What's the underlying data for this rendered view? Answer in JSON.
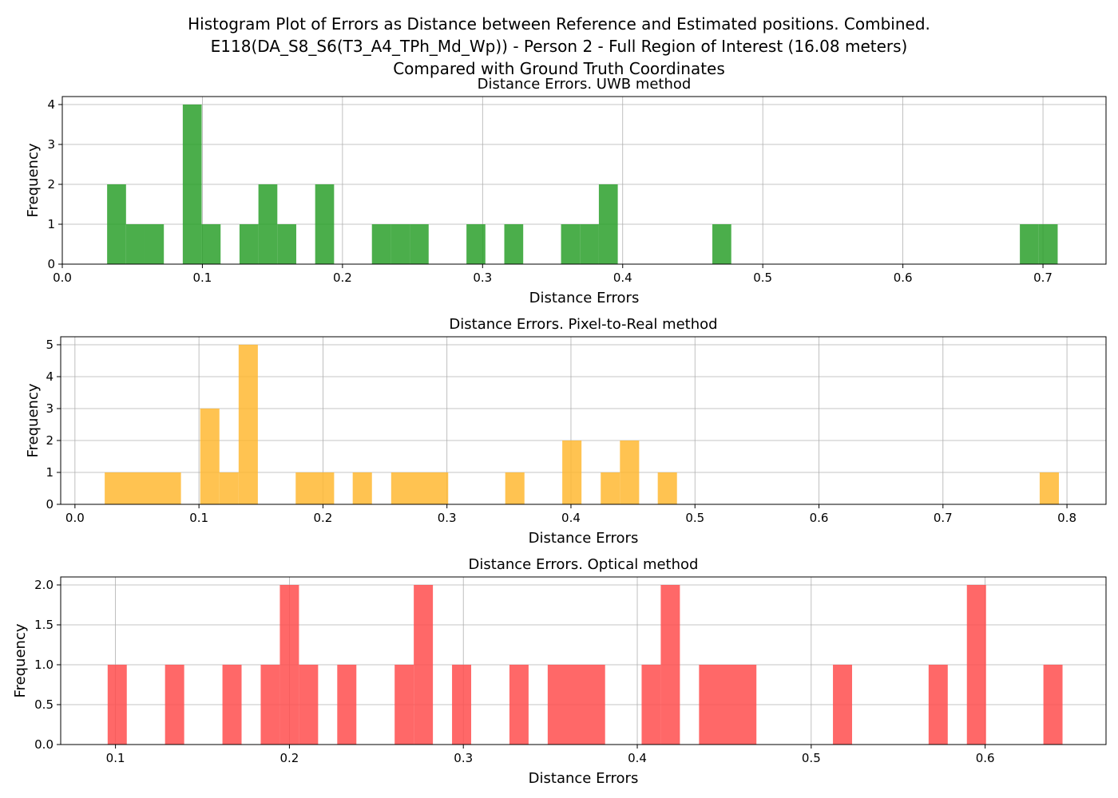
{
  "figure": {
    "title_lines": [
      "Histogram Plot of Errors as Distance between Reference and Estimated positions. Combined.",
      "E118(DA_S8_S6(T3_A4_TPh_Md_Wp)) - Person 2 - Full Region of Interest (16.08 meters)",
      "Compared with Ground Truth Coordinates"
    ]
  },
  "chart_data": [
    {
      "type": "bar",
      "title": "Distance Errors. UWB method",
      "xlabel": "Distance Errors",
      "ylabel": "Frequency",
      "color": "#2ca02c",
      "xlim": [
        0.0,
        0.745
      ],
      "ylim": [
        0,
        4.2
      ],
      "xticks": [
        0.0,
        0.1,
        0.2,
        0.3,
        0.4,
        0.5,
        0.6,
        0.7
      ],
      "xtick_labels": [
        "0.0",
        "0.1",
        "0.2",
        "0.3",
        "0.4",
        "0.5",
        "0.6",
        "0.7"
      ],
      "yticks": [
        0,
        1,
        2,
        3,
        4
      ],
      "ytick_labels": [
        "0",
        "1",
        "2",
        "3",
        "4"
      ],
      "grid": true,
      "bins": [
        {
          "x0": 0.032,
          "x1": 0.0455,
          "value": 2
        },
        {
          "x0": 0.0455,
          "x1": 0.059,
          "value": 1
        },
        {
          "x0": 0.059,
          "x1": 0.0725,
          "value": 1
        },
        {
          "x0": 0.086,
          "x1": 0.0995,
          "value": 4
        },
        {
          "x0": 0.0995,
          "x1": 0.113,
          "value": 1
        },
        {
          "x0": 0.1265,
          "x1": 0.14,
          "value": 1
        },
        {
          "x0": 0.14,
          "x1": 0.1535,
          "value": 2
        },
        {
          "x0": 0.1535,
          "x1": 0.167,
          "value": 1
        },
        {
          "x0": 0.1805,
          "x1": 0.194,
          "value": 2
        },
        {
          "x0": 0.221,
          "x1": 0.2345,
          "value": 1
        },
        {
          "x0": 0.2345,
          "x1": 0.248,
          "value": 1
        },
        {
          "x0": 0.248,
          "x1": 0.2615,
          "value": 1
        },
        {
          "x0": 0.2885,
          "x1": 0.302,
          "value": 1
        },
        {
          "x0": 0.3155,
          "x1": 0.329,
          "value": 1
        },
        {
          "x0": 0.356,
          "x1": 0.3695,
          "value": 1
        },
        {
          "x0": 0.3695,
          "x1": 0.383,
          "value": 1
        },
        {
          "x0": 0.383,
          "x1": 0.3965,
          "value": 2
        },
        {
          "x0": 0.464,
          "x1": 0.4775,
          "value": 1
        },
        {
          "x0": 0.6835,
          "x1": 0.697,
          "value": 1
        },
        {
          "x0": 0.697,
          "x1": 0.7105,
          "value": 1
        }
      ]
    },
    {
      "type": "bar",
      "title": "Distance Errors. Pixel-to-Real method",
      "xlabel": "Distance Errors",
      "ylabel": "Frequency",
      "color": "#ffb833",
      "xlim": [
        -0.0115,
        0.8315
      ],
      "ylim": [
        0,
        5.25
      ],
      "xticks": [
        0.0,
        0.1,
        0.2,
        0.3,
        0.4,
        0.5,
        0.6,
        0.7,
        0.8
      ],
      "xtick_labels": [
        "0.0",
        "0.1",
        "0.2",
        "0.3",
        "0.4",
        "0.5",
        "0.6",
        "0.7",
        "0.8"
      ],
      "yticks": [
        0,
        1,
        2,
        3,
        4,
        5
      ],
      "ytick_labels": [
        "0",
        "1",
        "2",
        "3",
        "4",
        "5"
      ],
      "grid": true,
      "bins": [
        {
          "x0": 0.024,
          "x1": 0.0855,
          "value": 1
        },
        {
          "x0": 0.101,
          "x1": 0.1165,
          "value": 3
        },
        {
          "x0": 0.1165,
          "x1": 0.132,
          "value": 1
        },
        {
          "x0": 0.132,
          "x1": 0.1475,
          "value": 5
        },
        {
          "x0": 0.178,
          "x1": 0.209,
          "value": 1
        },
        {
          "x0": 0.224,
          "x1": 0.2395,
          "value": 1
        },
        {
          "x0": 0.255,
          "x1": 0.301,
          "value": 1
        },
        {
          "x0": 0.347,
          "x1": 0.3625,
          "value": 1
        },
        {
          "x0": 0.393,
          "x1": 0.4085,
          "value": 2
        },
        {
          "x0": 0.424,
          "x1": 0.4395,
          "value": 1
        },
        {
          "x0": 0.4395,
          "x1": 0.455,
          "value": 2
        },
        {
          "x0": 0.47,
          "x1": 0.4855,
          "value": 1
        },
        {
          "x0": 0.778,
          "x1": 0.7935,
          "value": 1
        }
      ]
    },
    {
      "type": "bar",
      "title": "Distance Errors. Optical method",
      "xlabel": "Distance Errors",
      "ylabel": "Frequency",
      "color": "#ff4d4d",
      "xlim": [
        0.0685,
        0.6695
      ],
      "ylim": [
        0,
        2.1
      ],
      "xticks": [
        0.1,
        0.2,
        0.3,
        0.4,
        0.5,
        0.6
      ],
      "xtick_labels": [
        "0.1",
        "0.2",
        "0.3",
        "0.4",
        "0.5",
        "0.6"
      ],
      "yticks": [
        0.0,
        0.5,
        1.0,
        1.5,
        2.0
      ],
      "ytick_labels": [
        "0.0",
        "0.5",
        "1.0",
        "1.5",
        "2.0"
      ],
      "grid": true,
      "bins": [
        {
          "x0": 0.0955,
          "x1": 0.1065,
          "value": 1
        },
        {
          "x0": 0.1285,
          "x1": 0.1395,
          "value": 1
        },
        {
          "x0": 0.1615,
          "x1": 0.1725,
          "value": 1
        },
        {
          "x0": 0.1835,
          "x1": 0.1945,
          "value": 1
        },
        {
          "x0": 0.1945,
          "x1": 0.2055,
          "value": 2
        },
        {
          "x0": 0.2055,
          "x1": 0.2165,
          "value": 1
        },
        {
          "x0": 0.2275,
          "x1": 0.2385,
          "value": 1
        },
        {
          "x0": 0.2605,
          "x1": 0.2715,
          "value": 1
        },
        {
          "x0": 0.2715,
          "x1": 0.2825,
          "value": 2
        },
        {
          "x0": 0.2935,
          "x1": 0.3045,
          "value": 1
        },
        {
          "x0": 0.3265,
          "x1": 0.3375,
          "value": 1
        },
        {
          "x0": 0.3485,
          "x1": 0.3815,
          "value": 1
        },
        {
          "x0": 0.4025,
          "x1": 0.4135,
          "value": 1
        },
        {
          "x0": 0.4135,
          "x1": 0.4245,
          "value": 2
        },
        {
          "x0": 0.4355,
          "x1": 0.4685,
          "value": 1
        },
        {
          "x0": 0.5125,
          "x1": 0.5235,
          "value": 1
        },
        {
          "x0": 0.5675,
          "x1": 0.5785,
          "value": 1
        },
        {
          "x0": 0.5895,
          "x1": 0.6005,
          "value": 2
        },
        {
          "x0": 0.6335,
          "x1": 0.6445,
          "value": 1
        }
      ]
    }
  ]
}
